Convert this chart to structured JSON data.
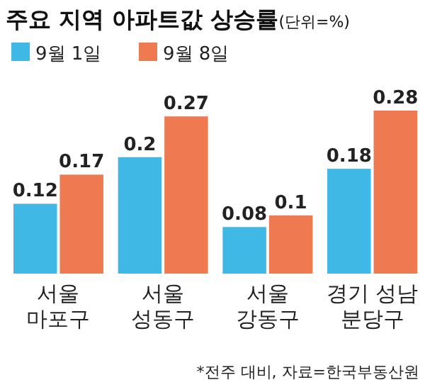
{
  "chart_data": {
    "type": "bar",
    "title": "주요 지역 아파트값 상승률",
    "subtitle": "(단위=%)",
    "categories": [
      "서울 마포구",
      "서울 성동구",
      "서울 강동구",
      "경기 성남 분당구"
    ],
    "series": [
      {
        "name": "9월 1일",
        "color": "#3fb8e6",
        "values": [
          0.12,
          0.2,
          0.08,
          0.18
        ]
      },
      {
        "name": "9월 8일",
        "color": "#ef7a52",
        "values": [
          0.17,
          0.27,
          0.1,
          0.28
        ]
      }
    ],
    "data_labels": true,
    "legend": "top left",
    "annotations": [
      "*전주 대비, 자료=한국부동산원"
    ]
  }
}
